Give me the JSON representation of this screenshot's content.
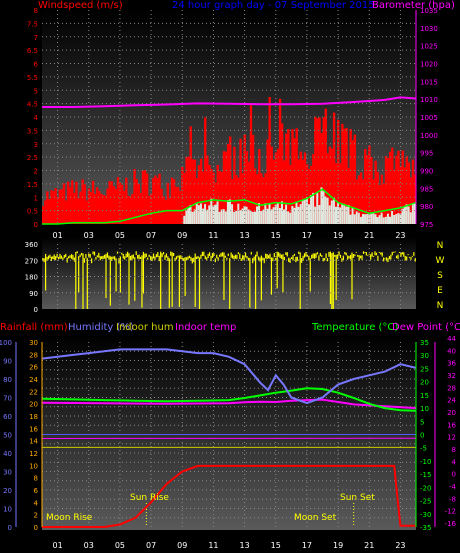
{
  "chart_data": [
    {
      "type": "line",
      "panel": "wind_barometer",
      "title": "24 hour graph day - 07 September 2015",
      "legend": [
        "Windspeed (m/s)",
        "Barometer (hpa)"
      ],
      "x_tick_labels": [
        "01",
        "03",
        "05",
        "07",
        "09",
        "11",
        "13",
        "15",
        "17",
        "19",
        "21",
        "23"
      ],
      "xlim": [
        0,
        24
      ],
      "left_axis": {
        "label": "Windspeed (m/s)",
        "ylim": [
          0,
          8
        ],
        "ticks": [
          "0",
          "0.5",
          "1",
          "1.5",
          "2",
          "2.5",
          "3",
          "3.5",
          "4",
          "4.5",
          "5",
          "5.5",
          "6",
          "6.5",
          "7",
          "7.5",
          "8"
        ]
      },
      "right_axis": {
        "label": "Barometer (hpa)",
        "ylim": [
          975,
          1035
        ],
        "ticks": [
          "975",
          "980",
          "985",
          "990",
          "995",
          "1000",
          "1005",
          "1010",
          "1015",
          "1020",
          "1025",
          "1030",
          "1035"
        ]
      },
      "barometer": {
        "x": [
          0,
          2,
          4,
          6,
          8,
          10,
          12,
          14,
          16,
          18,
          20,
          22,
          23,
          24
        ],
        "y": [
          1007.8,
          1007.8,
          1008.0,
          1008.3,
          1008.5,
          1008.8,
          1008.7,
          1008.6,
          1008.6,
          1008.7,
          1009.2,
          1009.8,
          1010.5,
          1010.2
        ]
      },
      "wind_gust_peak": {
        "x": [
          0,
          1,
          2,
          3,
          4,
          5,
          6,
          7,
          8,
          9,
          10,
          11,
          12,
          13,
          14,
          15,
          16,
          17,
          18,
          19,
          20,
          21,
          22,
          23,
          24
        ],
        "y": [
          1.2,
          1.3,
          1.5,
          1.5,
          1.4,
          1.6,
          1.8,
          1.9,
          1.6,
          2.2,
          2.5,
          2.3,
          3.0,
          2.8,
          3.2,
          3.0,
          3.2,
          3.6,
          4.6,
          3.8,
          3.0,
          2.6,
          2.4,
          2.6,
          2.2
        ]
      },
      "wind_avg": {
        "x": [
          0,
          1,
          2,
          3,
          4,
          5,
          6,
          7,
          8,
          9,
          10,
          11,
          12,
          13,
          14,
          15,
          16,
          17,
          18,
          19,
          20,
          21,
          22,
          23,
          24
        ],
        "y": [
          0.0,
          0.0,
          0.05,
          0.05,
          0.05,
          0.1,
          0.25,
          0.4,
          0.5,
          0.5,
          0.8,
          0.9,
          0.85,
          0.9,
          0.7,
          0.8,
          0.75,
          0.95,
          1.3,
          0.8,
          0.6,
          0.4,
          0.5,
          0.6,
          0.8
        ]
      },
      "colors": {
        "wind": "#ff0000",
        "barometer": "#ff00ff",
        "avg": "#00ff00",
        "title": "#0000ff"
      }
    },
    {
      "type": "bar",
      "panel": "wind_direction",
      "xlim": [
        0,
        24
      ],
      "left_axis": {
        "ylim": [
          0,
          360
        ],
        "ticks": [
          "0",
          "90",
          "180",
          "270",
          "360"
        ]
      },
      "right_labels": [
        "N",
        "W",
        "S",
        "E",
        "N"
      ],
      "direction_typical_deg": 300,
      "color": "#ffff00"
    },
    {
      "type": "line",
      "panel": "temp_humidity_rain",
      "legend": [
        "Rainfall (mm)",
        "Humidity (%)",
        "Indoor hum",
        "Indoor temp",
        "Temperature (°C)",
        "Dew Point (°C)"
      ],
      "x_tick_labels": [
        "01",
        "03",
        "05",
        "07",
        "09",
        "11",
        "13",
        "15",
        "17",
        "19",
        "21",
        "23"
      ],
      "xlim": [
        0,
        24
      ],
      "axis_rainfall": {
        "label": "Rainfall (mm)",
        "ticks": [
          "0",
          "2",
          "4",
          "6",
          "8",
          "10",
          "12",
          "14",
          "16",
          "18",
          "20",
          "22",
          "24",
          "26",
          "28",
          "30"
        ],
        "ylim": [
          0,
          30
        ]
      },
      "axis_humidity": {
        "label": "Humidity (%)",
        "ticks": [
          "0",
          "5",
          "10",
          "15",
          "20",
          "25",
          "30",
          "35",
          "40",
          "45",
          "50",
          "55",
          "60",
          "65",
          "70",
          "75",
          "80",
          "85",
          "90",
          "95",
          "100"
        ],
        "ylim": [
          0,
          100
        ]
      },
      "axis_temperature": {
        "label": "Temperature (°C)",
        "ticks": [
          "-35",
          "-30",
          "-25",
          "-20",
          "-15",
          "-10",
          "-5",
          "0",
          "5",
          "10",
          "15",
          "20",
          "25",
          "30",
          "35"
        ],
        "ylim": [
          -35,
          35
        ]
      },
      "axis_dewpoint": {
        "label": "Dew Point (°C)",
        "ticks": [
          "-16",
          "-12",
          "-8",
          "-4",
          "0",
          "4",
          "8",
          "12",
          "16",
          "20",
          "24",
          "28",
          "32",
          "36",
          "40",
          "44"
        ]
      },
      "humidity": {
        "x": [
          0,
          1,
          2,
          3,
          4,
          5,
          6,
          7,
          8,
          9,
          10,
          11,
          12,
          13,
          14,
          14.5,
          15,
          15.5,
          16,
          17,
          18,
          19,
          20,
          21,
          22,
          23,
          24
        ],
        "y": [
          91,
          92,
          93,
          94,
          95,
          96,
          96,
          96,
          96,
          95,
          94,
          94,
          92,
          88,
          78,
          74,
          82,
          77,
          70,
          67,
          70,
          77,
          80,
          82,
          84,
          88,
          86
        ]
      },
      "temperature": {
        "x": [
          0,
          2,
          4,
          6,
          8,
          10,
          12,
          13,
          14,
          15,
          16,
          17,
          18,
          19,
          20,
          21,
          22,
          23,
          24
        ],
        "y": [
          13.5,
          13.3,
          13.0,
          12.8,
          12.6,
          12.8,
          13.0,
          13.8,
          14.8,
          15.8,
          16.6,
          17.5,
          17.2,
          15.8,
          13.8,
          11.6,
          10.0,
          9.2,
          9.0
        ]
      },
      "dewpoint": {
        "x": [
          0,
          4,
          8,
          12,
          13,
          14,
          15,
          16,
          17,
          18,
          19,
          20,
          24
        ],
        "y": [
          12.0,
          11.8,
          11.6,
          11.8,
          12.2,
          12.4,
          12.3,
          12.8,
          13.0,
          13.2,
          12.3,
          11.4,
          10.0
        ]
      },
      "indoor_temp": {
        "x": [
          0,
          24
        ],
        "y": [
          -1.5,
          -1.4
        ]
      },
      "indoor_hum": {
        "x": [
          0,
          24
        ],
        "y": [
          43,
          43
        ]
      },
      "rainfall_cumulative_mm": {
        "x": [
          0,
          4,
          5,
          6,
          7,
          8,
          9,
          10,
          11,
          22,
          22.6,
          23,
          24
        ],
        "y": [
          0,
          0,
          0.4,
          1.5,
          4,
          7,
          9,
          9.9,
          9.9,
          9.9,
          9.9,
          0.2,
          0.2
        ]
      },
      "sun": {
        "rise_label": "Sun Rise",
        "set_label": "Sun Set",
        "rise_time": 6.7,
        "set_time": 20.0
      },
      "moon": {
        "rise_label": "Moon Rise",
        "set_label": "Moon Set",
        "rise_time": 0.1,
        "set_time": 17.5
      },
      "colors": {
        "rain": "#ff0000",
        "humidity": "#7777ff",
        "indoor_hum": "#cccc00",
        "indoor_temp": "#ff00ff",
        "temperature": "#00ff00",
        "dewpoint": "#ff00ff"
      }
    }
  ]
}
